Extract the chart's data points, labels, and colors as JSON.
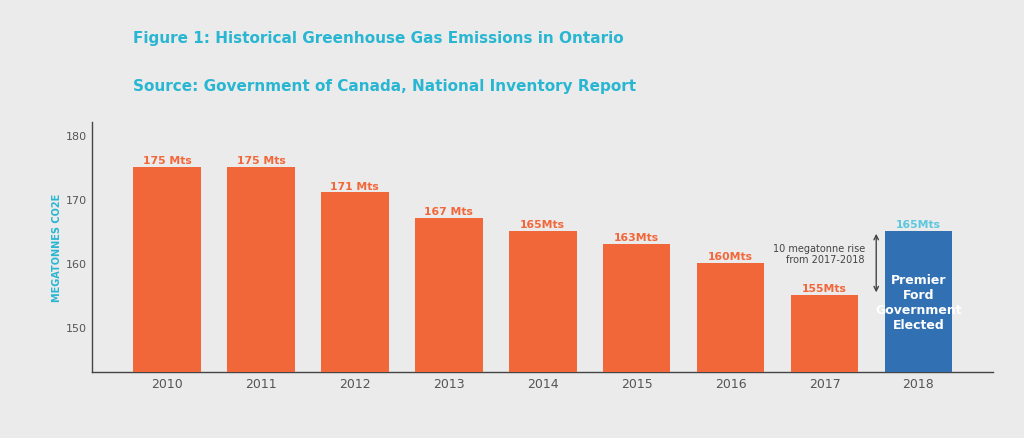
{
  "years": [
    "2010",
    "2011",
    "2012",
    "2013",
    "2014",
    "2015",
    "2016",
    "2017",
    "2018"
  ],
  "values": [
    175,
    175,
    171,
    167,
    165,
    163,
    160,
    155,
    165
  ],
  "bar_colors": [
    "#F2673A",
    "#F2673A",
    "#F2673A",
    "#F2673A",
    "#F2673A",
    "#F2673A",
    "#F2673A",
    "#F2673A",
    "#3070B3"
  ],
  "bar_labels": [
    "175 Mts",
    "175 Mts",
    "171 Mts",
    "167 Mts",
    "165Mts",
    "163Mts",
    "160Mts",
    "155Mts",
    "165Mts"
  ],
  "label_color_orange": "#F2673A",
  "label_color_blue": "#5BC8E0",
  "title_line1": "Figure 1: Historical Greenhouse Gas Emissions in Ontario",
  "title_line2": "Source: Government of Canada, National Inventory Report",
  "title_color": "#29B6D2",
  "ylabel": "MEGATONNES CO2E",
  "ylabel_color": "#29B6D2",
  "yticks": [
    150,
    160,
    170,
    180
  ],
  "ylim_min": 143,
  "ylim_max": 182,
  "background_color": "#EBEBEB",
  "annotation_text": "10 megatonne rise\nfrom 2017-2018",
  "annotation_color": "#444444",
  "ford_label": "Premier\nFord\nGovernment\nElected",
  "ford_label_color": "#FFFFFF",
  "tick_color": "#555555",
  "axis_color": "#444444"
}
